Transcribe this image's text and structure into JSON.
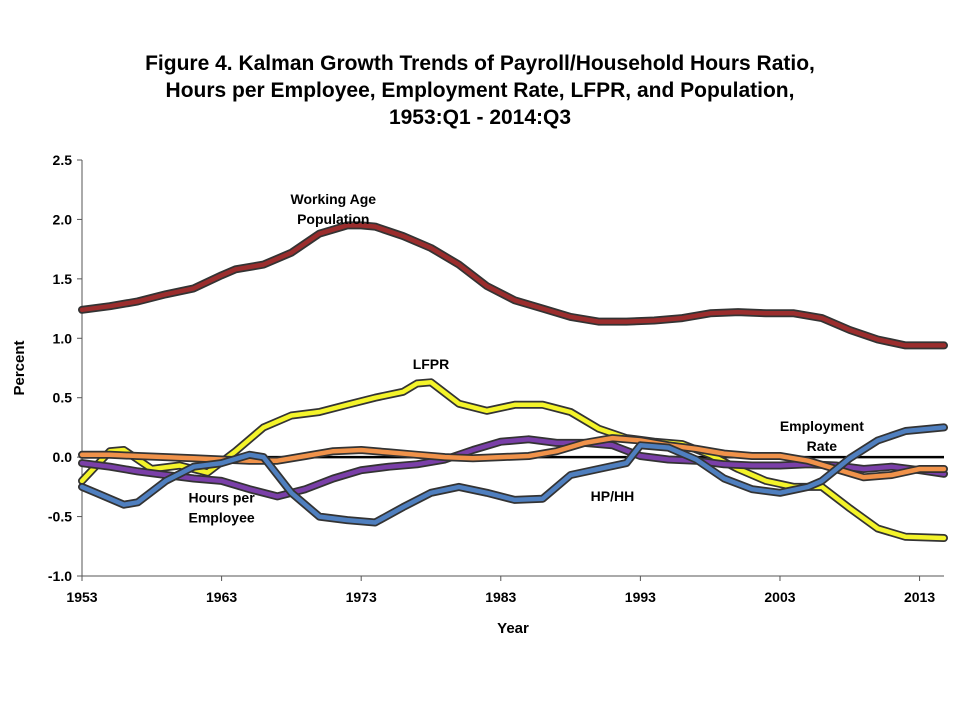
{
  "title_lines": [
    "Figure 4. Kalman Growth Trends of Payroll/Household Hours Ratio,",
    "Hours per Employee, Employment Rate, LFPR, and Population,",
    "1953:Q1 - 2014:Q3"
  ],
  "chart_data": {
    "type": "line",
    "title": "Figure 4. Kalman Growth Trends of Payroll/Household Hours Ratio, Hours per Employee, Employment Rate, LFPR, and Population, 1953:Q1 - 2014:Q3",
    "xlabel": "Year",
    "ylabel": "Percent",
    "xlim": [
      1953,
      2014.75
    ],
    "ylim": [
      -1.0,
      2.5
    ],
    "x_ticks": [
      "1953",
      "1963",
      "1973",
      "1983",
      "1993",
      "2003",
      "2013"
    ],
    "y_ticks": [
      "-1.0",
      "-0.5",
      "0.0",
      "0.5",
      "1.0",
      "1.5",
      "2.0",
      "2.5"
    ],
    "grid": false,
    "zero_line": true,
    "annotations": [
      {
        "lines": [
          "Working Age",
          "Population"
        ],
        "x": 1971,
        "y": 2.13
      },
      {
        "lines": [
          "LFPR"
        ],
        "x": 1978,
        "y": 0.74
      },
      {
        "lines": [
          "Employment",
          "Rate"
        ],
        "x": 2006,
        "y": 0.22
      },
      {
        "lines": [
          "HP/HH"
        ],
        "x": 1991,
        "y": -0.37
      },
      {
        "lines": [
          "Hours per",
          "Employee"
        ],
        "x": 1963,
        "y": -0.38
      }
    ],
    "series": [
      {
        "color": "#9B2D2D",
        "x": [
          1953,
          1955,
          1957,
          1959,
          1961,
          1963,
          1964,
          1966,
          1968,
          1970,
          1972,
          1973,
          1974,
          1976,
          1978,
          1980,
          1982,
          1984,
          1986,
          1988,
          1990,
          1992,
          1994,
          1996,
          1998,
          2000,
          2002,
          2004,
          2006,
          2008,
          2010,
          2012,
          2014.75
        ],
        "values": [
          1.24,
          1.27,
          1.31,
          1.37,
          1.42,
          1.53,
          1.58,
          1.62,
          1.72,
          1.88,
          1.95,
          1.95,
          1.94,
          1.86,
          1.76,
          1.62,
          1.44,
          1.32,
          1.25,
          1.18,
          1.14,
          1.14,
          1.15,
          1.17,
          1.21,
          1.22,
          1.21,
          1.21,
          1.17,
          1.07,
          0.99,
          0.94,
          0.94
        ]
      },
      {
        "color": "#F4F42A",
        "x": [
          1953,
          1955,
          1956,
          1958,
          1960,
          1962,
          1964,
          1966,
          1968,
          1970,
          1972,
          1974,
          1976,
          1977,
          1978,
          1980,
          1982,
          1984,
          1986,
          1988,
          1990,
          1992,
          1994,
          1996,
          1998,
          2000,
          2002,
          2004,
          2006,
          2008,
          2010,
          2012,
          2014.75
        ],
        "values": [
          -0.2,
          0.05,
          0.06,
          -0.1,
          -0.07,
          -0.13,
          0.05,
          0.25,
          0.35,
          0.38,
          0.44,
          0.5,
          0.55,
          0.62,
          0.63,
          0.45,
          0.39,
          0.44,
          0.44,
          0.38,
          0.24,
          0.16,
          0.13,
          0.11,
          0.02,
          -0.1,
          -0.2,
          -0.25,
          -0.25,
          -0.43,
          -0.6,
          -0.67,
          -0.68
        ]
      },
      {
        "color": "#7A3FA8",
        "x": [
          1953,
          1955,
          1957,
          1959,
          1961,
          1963,
          1965,
          1967,
          1969,
          1971,
          1973,
          1975,
          1977,
          1979,
          1981,
          1983,
          1985,
          1987,
          1989,
          1991,
          1993,
          1995,
          1997,
          1999,
          2001,
          2003,
          2005,
          2007,
          2009,
          2011,
          2013,
          2014.75
        ],
        "values": [
          -0.05,
          -0.08,
          -0.12,
          -0.15,
          -0.18,
          -0.2,
          -0.27,
          -0.33,
          -0.27,
          -0.18,
          -0.11,
          -0.08,
          -0.06,
          -0.02,
          0.06,
          0.13,
          0.15,
          0.12,
          0.12,
          0.1,
          0.01,
          -0.02,
          -0.03,
          -0.06,
          -0.07,
          -0.07,
          -0.06,
          -0.07,
          -0.1,
          -0.08,
          -0.11,
          -0.14
        ]
      },
      {
        "color": "#F0924A",
        "x": [
          1953,
          1955,
          1957,
          1959,
          1961,
          1963,
          1965,
          1967,
          1969,
          1971,
          1973,
          1975,
          1977,
          1979,
          1981,
          1983,
          1985,
          1987,
          1989,
          1991,
          1993,
          1995,
          1997,
          1999,
          2001,
          2003,
          2005,
          2007,
          2009,
          2011,
          2013,
          2014.75
        ],
        "values": [
          0.02,
          0.02,
          0.01,
          0.0,
          -0.01,
          -0.02,
          -0.03,
          -0.03,
          0.01,
          0.05,
          0.06,
          0.04,
          0.02,
          0.0,
          -0.01,
          0.0,
          0.01,
          0.05,
          0.12,
          0.16,
          0.14,
          0.1,
          0.07,
          0.03,
          0.01,
          0.01,
          -0.03,
          -0.1,
          -0.17,
          -0.15,
          -0.1,
          -0.1
        ]
      },
      {
        "color": "#4F7FBF",
        "x": [
          1953,
          1954,
          1956,
          1957,
          1959,
          1961,
          1963,
          1965,
          1966,
          1968,
          1970,
          1972,
          1974,
          1976,
          1978,
          1980,
          1982,
          1984,
          1986,
          1988,
          1990,
          1992,
          1993,
          1995,
          1997,
          1999,
          2001,
          2003,
          2005,
          2006,
          2008,
          2010,
          2012,
          2014.75
        ],
        "values": [
          -0.25,
          -0.3,
          -0.4,
          -0.38,
          -0.2,
          -0.08,
          -0.05,
          0.02,
          0.0,
          -0.3,
          -0.5,
          -0.53,
          -0.55,
          -0.42,
          -0.3,
          -0.25,
          -0.3,
          -0.36,
          -0.35,
          -0.15,
          -0.1,
          -0.05,
          0.1,
          0.08,
          -0.02,
          -0.18,
          -0.27,
          -0.3,
          -0.25,
          -0.2,
          -0.01,
          0.14,
          0.22,
          0.25
        ]
      }
    ]
  }
}
